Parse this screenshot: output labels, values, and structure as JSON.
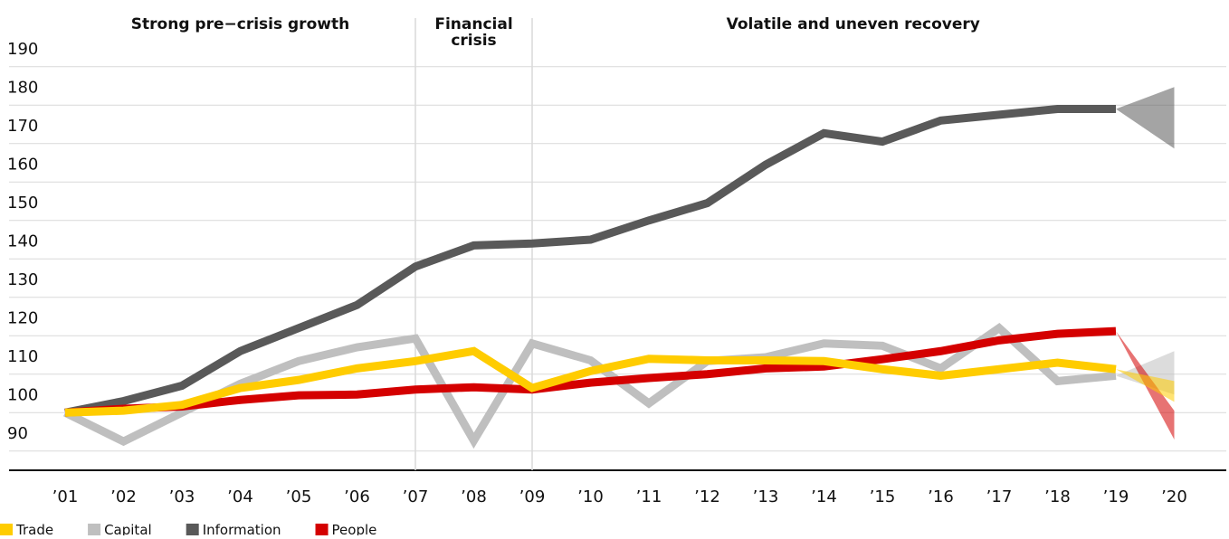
{
  "chart_data": {
    "type": "line",
    "categories": [
      "’01",
      "’02",
      "’03",
      "’04",
      "’05",
      "’06",
      "’07",
      "’08",
      "’09",
      "’10",
      "’11",
      "’12",
      "’13",
      "’14",
      "’15",
      "’16",
      "’17",
      "’18",
      "’19",
      "’20"
    ],
    "periods": [
      {
        "label": [
          "Strong pre−crisis growth"
        ],
        "from": "’01",
        "to": "’07"
      },
      {
        "label": [
          "Financial",
          "crisis"
        ],
        "from": "’07",
        "to": "’09"
      },
      {
        "label": [
          "Volatile and uneven recovery"
        ],
        "from": "’09",
        "to": "’20"
      }
    ],
    "ylim": [
      85,
      195
    ],
    "yticks": [
      90,
      100,
      110,
      120,
      130,
      140,
      150,
      160,
      170,
      180,
      190
    ],
    "grid": true,
    "series": [
      {
        "name": "Trade",
        "color": "#ffcc00",
        "values": [
          100,
          100.5,
          102,
          106.4,
          108.5,
          111.5,
          113.4,
          116,
          106.4,
          110.8,
          114,
          113.6,
          113.6,
          113.4,
          111.3,
          109.6,
          111.3,
          113,
          111.3,
          null
        ],
        "forecast_range": [
          102.8,
          108.2
        ]
      },
      {
        "name": "Capital",
        "color": "#bfbfbf",
        "values": [
          100,
          92.5,
          100,
          107.5,
          113.4,
          117,
          119.3,
          92.7,
          118,
          113.6,
          102.4,
          113.4,
          114.4,
          118,
          117.4,
          111.5,
          122,
          108.2,
          109.6,
          null
        ],
        "forecast_range": [
          104.7,
          116
        ]
      },
      {
        "name": "Information",
        "color": "#595959",
        "values": [
          100,
          103,
          107,
          116,
          122,
          128,
          138,
          143.5,
          144,
          145,
          150,
          154.5,
          164.5,
          172.7,
          170.5,
          176,
          177.5,
          179,
          179,
          null
        ],
        "forecast_range": [
          168.7,
          184.7
        ]
      },
      {
        "name": "People",
        "color": "#d40000",
        "values": [
          100,
          101,
          101.6,
          103.3,
          104.5,
          104.7,
          106,
          106.6,
          106,
          107.8,
          109,
          110,
          111.5,
          112,
          113.9,
          116,
          118.8,
          120.5,
          121.2,
          null
        ],
        "forecast_range": [
          93,
          100.5
        ]
      }
    ]
  }
}
